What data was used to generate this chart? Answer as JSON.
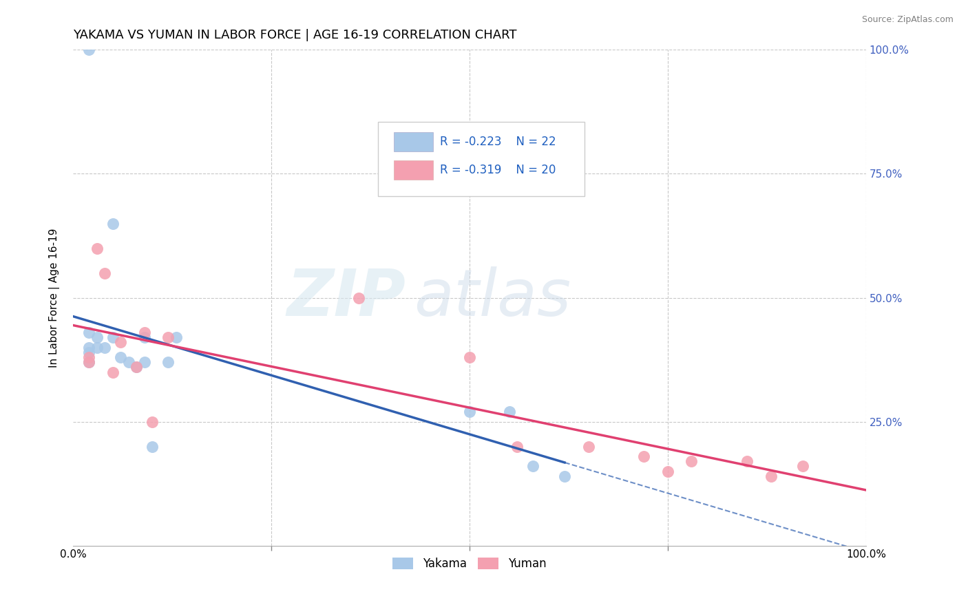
{
  "title": "YAKAMA VS YUMAN IN LABOR FORCE | AGE 16-19 CORRELATION CHART",
  "source_text": "Source: ZipAtlas.com",
  "ylabel": "In Labor Force | Age 16-19",
  "xlim": [
    0,
    1.0
  ],
  "ylim": [
    0,
    1.0
  ],
  "background_color": "#ffffff",
  "grid_color": "#c8c8c8",
  "watermark_zip": "ZIP",
  "watermark_atlas": "atlas",
  "yakama_color": "#a8c8e8",
  "yuman_color": "#f4a0b0",
  "yakama_line_color": "#3060b0",
  "yuman_line_color": "#e04070",
  "yakama_R": -0.223,
  "yakama_N": 22,
  "yuman_R": -0.319,
  "yuman_N": 20,
  "yakama_x": [
    0.02,
    0.02,
    0.02,
    0.02,
    0.02,
    0.03,
    0.03,
    0.04,
    0.05,
    0.05,
    0.06,
    0.07,
    0.08,
    0.09,
    0.09,
    0.1,
    0.12,
    0.13,
    0.5,
    0.55,
    0.58,
    0.62
  ],
  "yakama_y": [
    1.0,
    0.43,
    0.4,
    0.39,
    0.37,
    0.42,
    0.4,
    0.4,
    0.65,
    0.42,
    0.38,
    0.37,
    0.36,
    0.37,
    0.42,
    0.2,
    0.37,
    0.42,
    0.27,
    0.27,
    0.16,
    0.14
  ],
  "yuman_x": [
    0.02,
    0.02,
    0.03,
    0.04,
    0.05,
    0.06,
    0.08,
    0.09,
    0.1,
    0.12,
    0.36,
    0.5,
    0.56,
    0.65,
    0.72,
    0.75,
    0.78,
    0.85,
    0.88,
    0.92
  ],
  "yuman_y": [
    0.38,
    0.37,
    0.6,
    0.55,
    0.35,
    0.41,
    0.36,
    0.43,
    0.25,
    0.42,
    0.5,
    0.38,
    0.2,
    0.2,
    0.18,
    0.15,
    0.17,
    0.17,
    0.14,
    0.16
  ],
  "legend_label1": "Yakama",
  "legend_label2": "Yuman",
  "title_fontsize": 13,
  "axis_label_fontsize": 11,
  "tick_fontsize": 11,
  "legend_fontsize": 12,
  "legend_color": "#2060c0",
  "right_axis_color": "#4060c0"
}
